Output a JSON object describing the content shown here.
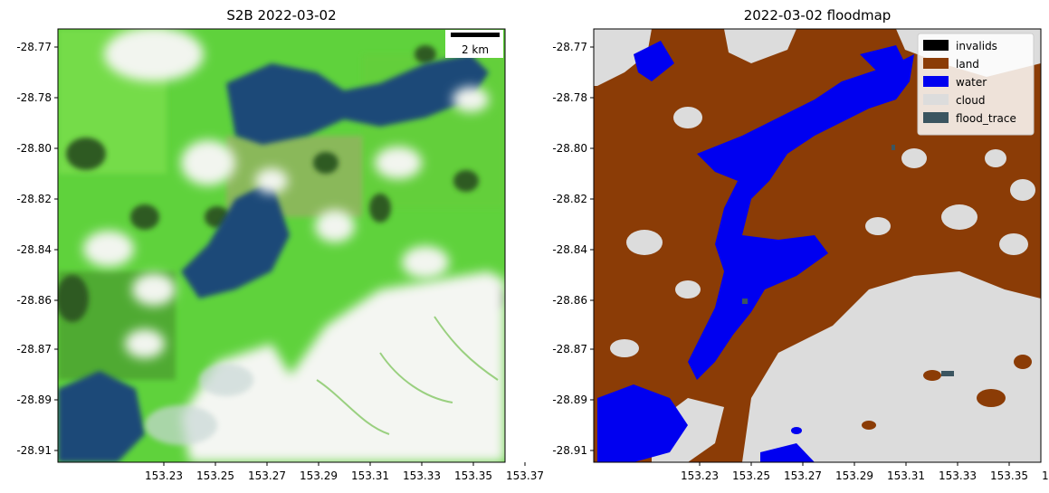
{
  "panels": [
    {
      "title": "S2B 2022-03-02",
      "kind": "satellite-image",
      "scalebar": "2 km"
    },
    {
      "title": "2022-03-02 floodmap",
      "kind": "classification-map",
      "legend": [
        {
          "label": "invalids",
          "color": "#000000"
        },
        {
          "label": "land",
          "color": "#8b3c06"
        },
        {
          "label": "water",
          "color": "#0000f0"
        },
        {
          "label": "cloud",
          "color": "#dcdcdc"
        },
        {
          "label": "flood_trace",
          "color": "#3b5560"
        }
      ]
    }
  ],
  "axes": {
    "x_ticks": [
      "153.23",
      "153.25",
      "153.27",
      "153.29",
      "153.31",
      "153.33",
      "153.35",
      "153.37"
    ],
    "y_ticks": [
      "-28.77",
      "-28.78",
      "-28.80",
      "-28.82",
      "-28.84",
      "-28.86",
      "-28.87",
      "-28.89",
      "-28.91"
    ]
  },
  "colors": {
    "satellite_vegetation": "#5fd23c",
    "satellite_dark_vegetation": "#2f5a22",
    "satellite_water": "#1e4a78",
    "satellite_cloud": "#f2f5ef"
  }
}
